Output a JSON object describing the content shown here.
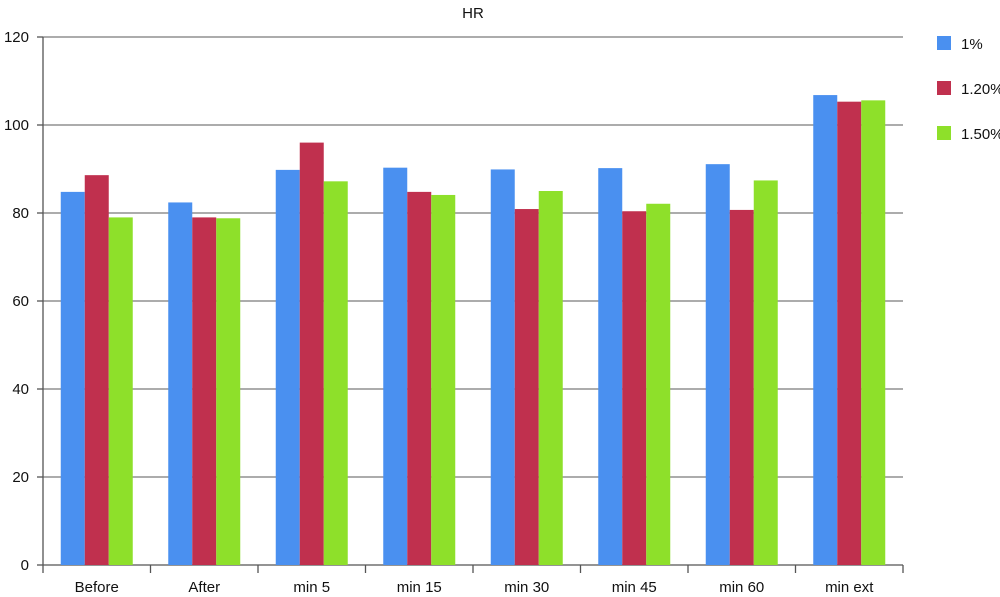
{
  "chart_data": {
    "type": "bar",
    "title": "HR",
    "xlabel": "",
    "ylabel": "",
    "ylim": [
      0,
      120
    ],
    "yticks": [
      0,
      20,
      40,
      60,
      80,
      100,
      120
    ],
    "grid": true,
    "legend_position": "right",
    "categories": [
      "Before",
      "After",
      "min 5",
      "min 15",
      "min 30",
      "min 45",
      "min 60",
      "min ext"
    ],
    "series": [
      {
        "name": "1%",
        "color": "#4a90f0",
        "values": [
          84.8,
          82.4,
          89.8,
          90.3,
          89.9,
          90.2,
          91.1,
          106.8
        ]
      },
      {
        "name": "1.20%",
        "color": "#c0304e",
        "values": [
          88.6,
          79.0,
          96.0,
          84.8,
          80.9,
          80.4,
          80.7,
          105.3
        ]
      },
      {
        "name": "1.50%",
        "color": "#8ee02a",
        "values": [
          79.0,
          78.8,
          87.2,
          84.1,
          85.0,
          82.1,
          87.4,
          105.6
        ]
      }
    ]
  }
}
